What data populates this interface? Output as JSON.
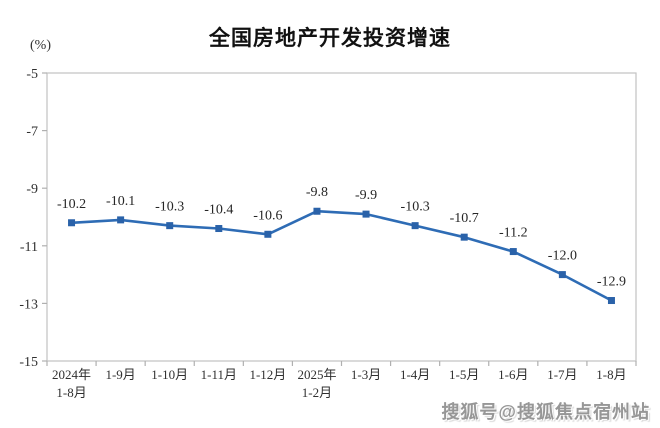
{
  "header": {
    "title": "全国房地产开发投资增速",
    "unit_label": "(%)"
  },
  "watermark": {
    "text": "搜狐号@搜狐焦点宿州站"
  },
  "chart_data": {
    "type": "line",
    "title": "全国房地产开发投资增速",
    "ylabel": "(%)",
    "xlabel": "",
    "categories": [
      "2024年\n1-8月",
      "1-9月",
      "1-10月",
      "1-11月",
      "1-12月",
      "2025年\n1-2月",
      "1-3月",
      "1-4月",
      "1-5月",
      "1-6月",
      "1-7月",
      "1-8月"
    ],
    "values": [
      -10.2,
      -10.1,
      -10.3,
      -10.4,
      -10.6,
      -9.8,
      -9.9,
      -10.3,
      -10.7,
      -11.2,
      -12.0,
      -12.9
    ],
    "data_labels": [
      "-10.2",
      "-10.1",
      "-10.3",
      "-10.4",
      "-10.6",
      "-9.8",
      "-9.9",
      "-10.3",
      "-10.7",
      "-11.2",
      "-12.0",
      "-12.9"
    ],
    "ylim": [
      -15,
      -5
    ],
    "yticks": [
      -5,
      -7,
      -9,
      -11,
      -13,
      -15
    ],
    "grid": false,
    "legend": "none",
    "line_color": "#2e6cb5",
    "marker_color": "#2a62a9",
    "axis_color": "#c2c2c2",
    "tick_color": "#b0b0b0",
    "text_color": "#303030",
    "label_color": "#262626"
  }
}
